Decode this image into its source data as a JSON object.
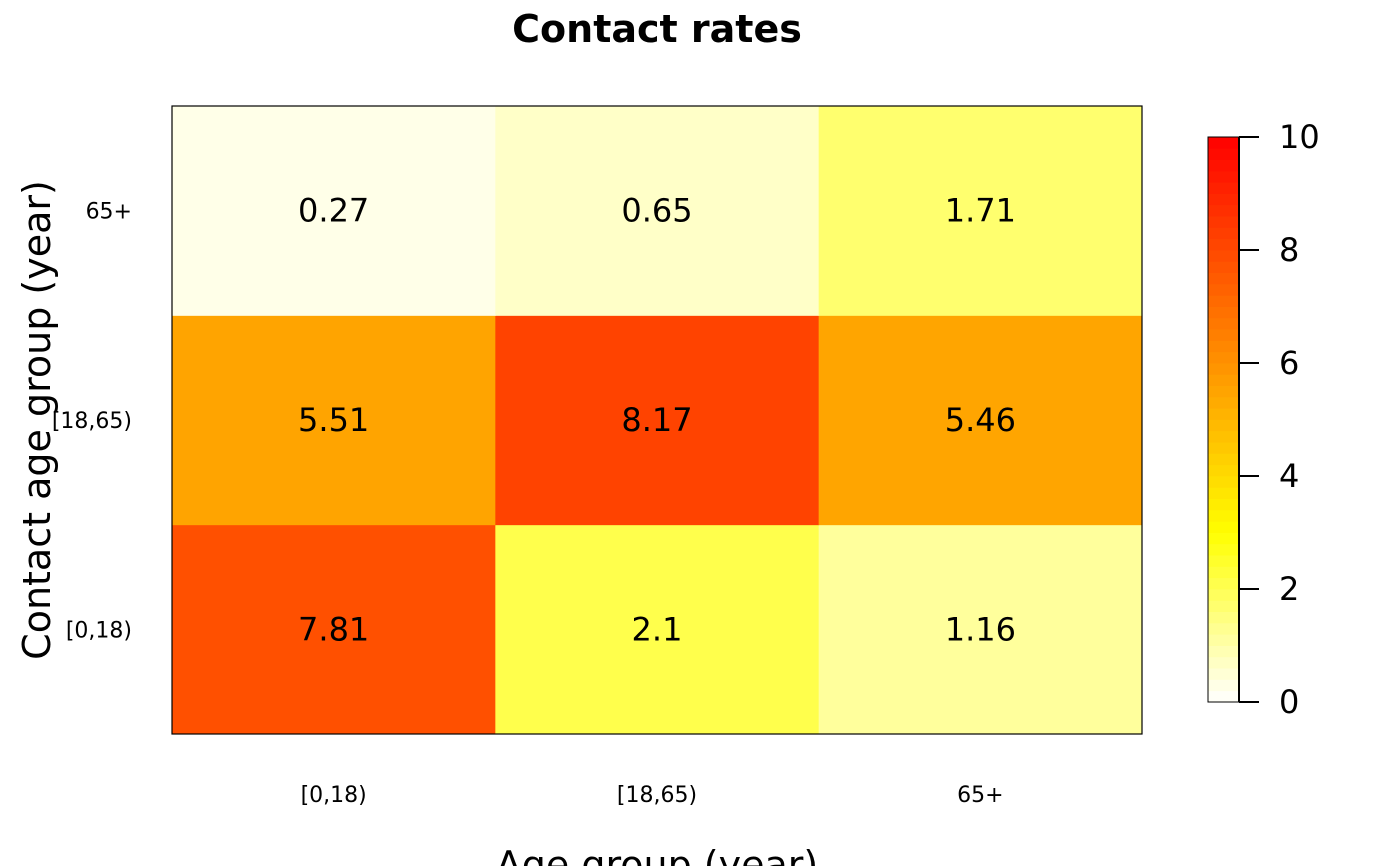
{
  "chart_data": {
    "type": "heatmap",
    "title": "Contact rates",
    "xlabel": "Age group (year)",
    "ylabel": "Contact age group (year)",
    "x_categories": [
      "[0,18)",
      "[18,65)",
      "65+"
    ],
    "y_categories": [
      "[0,18)",
      "[18,65)",
      "65+"
    ],
    "values": [
      [
        7.81,
        2.1,
        1.16
      ],
      [
        5.51,
        8.17,
        5.46
      ],
      [
        0.27,
        0.65,
        1.71
      ]
    ],
    "value_labels": [
      [
        "7.81",
        "2.1",
        "1.16"
      ],
      [
        "5.51",
        "8.17",
        "5.46"
      ],
      [
        "0.27",
        "0.65",
        "1.71"
      ]
    ],
    "value_range": [
      0,
      10
    ],
    "colorbar": {
      "ticks": [
        "0",
        "2",
        "4",
        "6",
        "8",
        "10"
      ],
      "low_color": "#ffffff",
      "mid_color": "#ffff00",
      "high_color": "#ff0000"
    },
    "grid": false,
    "legend": "right"
  }
}
